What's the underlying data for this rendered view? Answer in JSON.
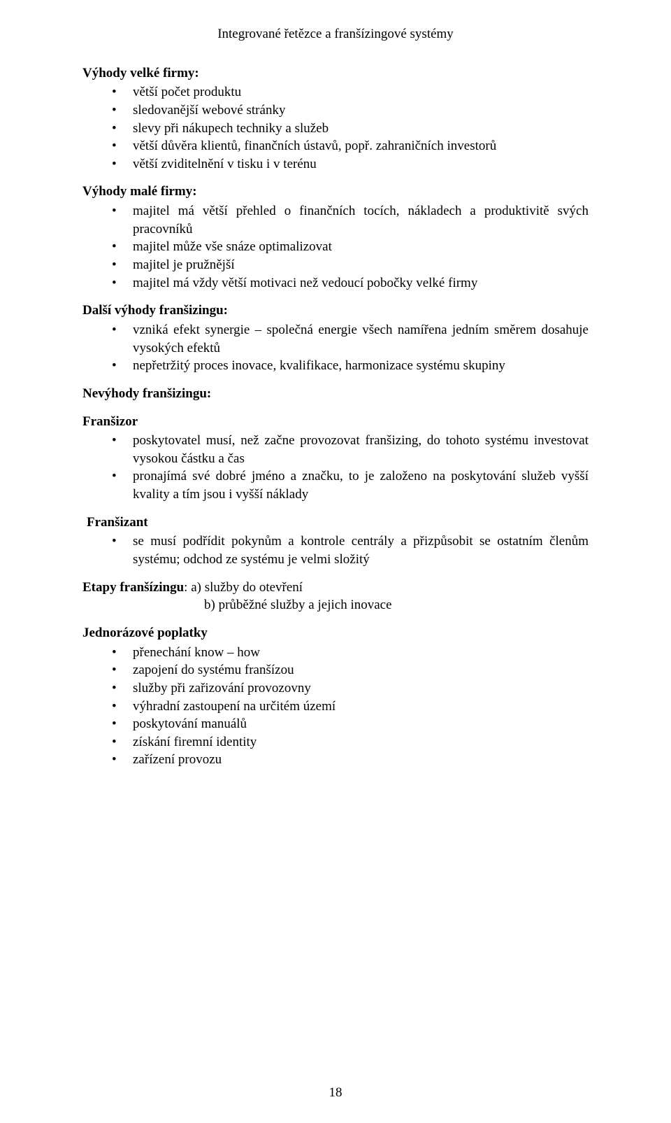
{
  "header": "Integrované řetězce a franšízingové systémy",
  "s1": {
    "title": "Výhody velké firmy:",
    "items": [
      "větší počet produktu",
      "sledovanější webové stránky",
      "slevy při nákupech techniky a služeb",
      "větší důvěra klientů, finančních ústavů, popř. zahraničních investorů",
      "větší zviditelnění v tisku i v terénu"
    ]
  },
  "s2": {
    "title": "Výhody malé firmy:",
    "items": [
      "majitel má větší přehled o finančních tocích, nákladech a produktivitě svých pracovníků",
      "majitel může vše snáze optimalizovat",
      "majitel je pružnější",
      "majitel má vždy větší motivaci než vedoucí pobočky velké firmy"
    ]
  },
  "s3": {
    "title": "Další výhody franšizingu:",
    "items": [
      "vzniká efekt synergie – společná energie všech namířena jedním směrem dosahuje vysokých efektů",
      "nepřetržitý proces inovace, kvalifikace, harmonizace systému skupiny"
    ]
  },
  "s4": {
    "title": "Nevýhody franšizingu:"
  },
  "s5": {
    "title": "Franšizor",
    "items": [
      "poskytovatel musí, než začne provozovat franšizing, do tohoto systému investovat vysokou částku a čas",
      "pronajímá své dobré jméno a značku, to je založeno na poskytování služeb vyšší kvality a tím jsou i vyšší náklady"
    ]
  },
  "s6": {
    "title": "Franšizant",
    "items": [
      "se musí podřídit pokynům a kontrole centrály a přizpůsobit se ostatním členům systému; odchod ze systému je velmi složitý"
    ]
  },
  "etapy": {
    "label": "Etapy franšízingu",
    "a": ": a) služby do otevření",
    "b": "b) průběžné služby a jejich inovace"
  },
  "s7": {
    "title": "Jednorázové poplatky",
    "items": [
      "přenechání know – how",
      "zapojení do systému franšízou",
      "služby při zařizování provozovny",
      "výhradní zastoupení na určitém území",
      "poskytování manuálů",
      "získání firemní identity",
      "zařízení provozu"
    ]
  },
  "pageNumber": "18"
}
